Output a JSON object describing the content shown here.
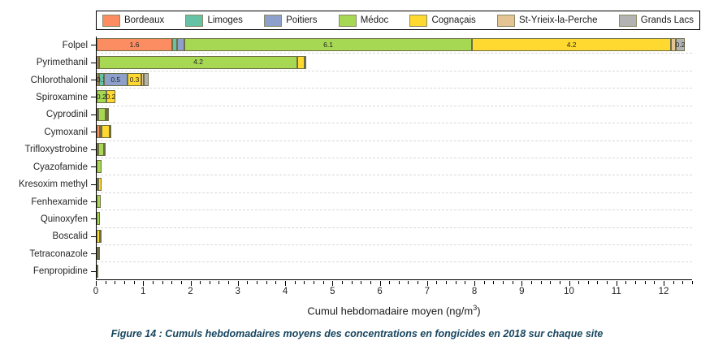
{
  "caption": "Figure 14 : Cumuls hebdomadaires moyens des concentrations en fongicides en 2018 sur chaque site",
  "axis": {
    "title_prefix": "Cumul hebdomadaire moyen (ng/m",
    "title_sup": "3",
    "title_suffix": ")"
  },
  "colors": {
    "caption_text": "#17465F",
    "bar_border": "#6E6E46",
    "gridline": "#D9D9D9",
    "axis_line": "#000000"
  },
  "chart_data": {
    "type": "bar",
    "orientation": "horizontal",
    "stacked": true,
    "grid": "horizontal-dashed",
    "legend_position": "top",
    "xlabel": "Cumul hebdomadaire moyen (ng/m³)",
    "ylabel": "",
    "xlim": [
      0,
      12.6
    ],
    "x_major_ticks": [
      0,
      1,
      2,
      3,
      4,
      5,
      6,
      7,
      8,
      9,
      10,
      11,
      12
    ],
    "x_tick_labels": [
      "0",
      "1",
      "2",
      "3",
      "4",
      "5",
      "6",
      "7",
      "8",
      "9",
      "10",
      "11",
      "12"
    ],
    "x_minor_tick_step": 0.2,
    "categories": [
      "Folpel",
      "Pyrimethanil",
      "Chlorothalonil",
      "Spiroxamine",
      "Cyprodinil",
      "Cymoxanil",
      "Trifloxystrobine",
      "Cyazofamide",
      "Kresoxim methyl",
      "Fenhexamide",
      "Quinoxyfen",
      "Boscalid",
      "Tetraconazole",
      "Fenpropidine"
    ],
    "series": [
      {
        "name": "Bordeaux",
        "color": "#FC8D62",
        "values": [
          1.6,
          0.05,
          0.05,
          0,
          0.03,
          0.07,
          0.02,
          0,
          0,
          0,
          0,
          0,
          0,
          0
        ],
        "labels": [
          "1.6",
          "",
          "",
          "",
          "",
          "",
          "",
          "",
          "",
          "",
          "",
          "",
          "",
          ""
        ]
      },
      {
        "name": "Limoges",
        "color": "#66C2A5",
        "values": [
          0.1,
          0,
          0.1,
          0,
          0,
          0,
          0,
          0,
          0,
          0,
          0,
          0,
          0,
          0
        ],
        "labels": [
          "",
          "",
          "0.1",
          "",
          "",
          "",
          "",
          "",
          "",
          "",
          "",
          "",
          "",
          ""
        ]
      },
      {
        "name": "Poitiers",
        "color": "#8DA0CB",
        "values": [
          0.15,
          0,
          0.5,
          0,
          0,
          0,
          0,
          0,
          0,
          0,
          0,
          0,
          0,
          0
        ],
        "labels": [
          "",
          "",
          "0.5",
          "",
          "",
          "",
          "",
          "",
          "",
          "",
          "",
          "",
          "",
          ""
        ]
      },
      {
        "name": "Médoc",
        "color": "#A6D854",
        "values": [
          6.1,
          4.2,
          0,
          0.2,
          0.15,
          0.02,
          0.12,
          0.1,
          0.02,
          0.08,
          0.07,
          0,
          0,
          0
        ],
        "labels": [
          "6.1",
          "4.2",
          "",
          "0.2",
          "",
          "",
          "",
          "",
          "",
          "",
          "",
          "",
          "",
          ""
        ]
      },
      {
        "name": "Cognaçais",
        "color": "#FFD92F",
        "values": [
          4.2,
          0.15,
          0.3,
          0.2,
          0.04,
          0.17,
          0,
          0,
          0.07,
          0,
          0,
          0.07,
          0.02,
          0
        ],
        "labels": [
          "4.2",
          "",
          "0.3",
          "0.2",
          "",
          "",
          "",
          "",
          "",
          "",
          "",
          "",
          "",
          ""
        ]
      },
      {
        "name": "St-Yrieix-la-Perche",
        "color": "#E5C494",
        "values": [
          0.1,
          0,
          0.05,
          0,
          0,
          0.03,
          0,
          0,
          0,
          0,
          0,
          0.02,
          0,
          0
        ],
        "labels": [
          "",
          "",
          "",
          "",
          "",
          "",
          "",
          "",
          "",
          "",
          "",
          "",
          "",
          ""
        ]
      },
      {
        "name": "Grands Lacs",
        "color": "#B3B3B3",
        "values": [
          0.2,
          0.03,
          0.1,
          0,
          0.02,
          0,
          0.02,
          0,
          0,
          0,
          0,
          0,
          0.04,
          0.02
        ],
        "labels": [
          "0.2",
          "",
          "",
          "",
          "",
          "",
          "",
          "",
          "",
          "",
          "",
          "",
          "",
          ""
        ]
      }
    ]
  }
}
